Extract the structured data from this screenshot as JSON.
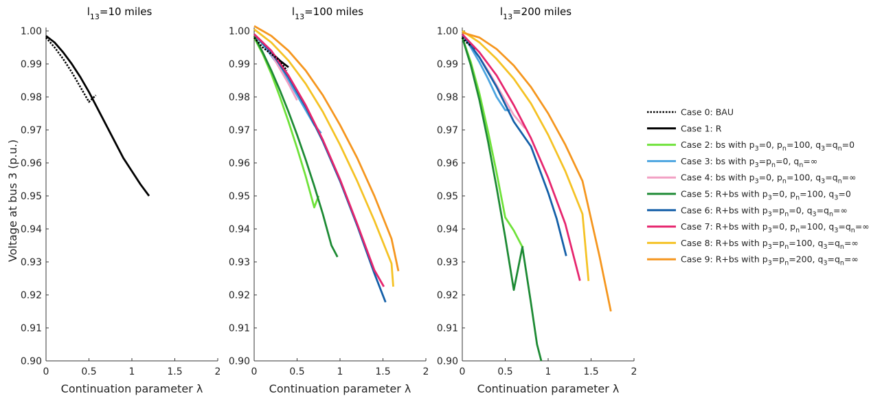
{
  "chart_data": [
    {
      "type": "line",
      "title": "l13=10 miles",
      "title_main": "l",
      "title_sub": "13",
      "title_rest": "=10 miles",
      "xlabel": "Continuation parameter λ",
      "ylabel": "Voltage at bus 3 (p.u.)",
      "xlim": [
        0,
        2
      ],
      "ylim": [
        0.9,
        1.0
      ],
      "xticks": [
        0,
        0.5,
        1,
        1.5,
        2
      ],
      "xtick_labels": [
        "0",
        "0.5",
        "1",
        "1.5",
        "2"
      ],
      "yticks": [
        0.9,
        0.91,
        0.92,
        0.93,
        0.94,
        0.95,
        0.96,
        0.97,
        0.98,
        0.99,
        1.0
      ],
      "ytick_labels": [
        "0.90",
        "0.91",
        "0.92",
        "0.93",
        "0.94",
        "0.95",
        "0.96",
        "0.97",
        "0.98",
        "0.99",
        "1.00"
      ],
      "series": [
        {
          "case": 0,
          "x": [
            0,
            0.1,
            0.2,
            0.3,
            0.4,
            0.5,
            0.58
          ],
          "y": [
            0.998,
            0.995,
            0.9915,
            0.9875,
            0.983,
            0.9785,
            0.9805
          ]
        },
        {
          "case": 1,
          "x": [
            0,
            0.1,
            0.2,
            0.3,
            0.4,
            0.5,
            0.6,
            0.7,
            0.8,
            0.9,
            1.0,
            1.1,
            1.2
          ],
          "y": [
            0.9985,
            0.9965,
            0.9935,
            0.99,
            0.986,
            0.9815,
            0.9765,
            0.9715,
            0.9665,
            0.9615,
            0.9575,
            0.9535,
            0.95
          ]
        }
      ]
    },
    {
      "type": "line",
      "title": "l13=100 miles",
      "title_main": "l",
      "title_sub": "13",
      "title_rest": "=100 miles",
      "xlabel": "Continuation parameter λ",
      "ylabel": "",
      "xlim": [
        0,
        2
      ],
      "ylim": [
        0.9,
        1.0
      ],
      "xticks": [
        0,
        0.5,
        1,
        1.5,
        2
      ],
      "xtick_labels": [
        "0",
        "0.5",
        "1",
        "1.5",
        "2"
      ],
      "yticks": [
        0.9,
        0.91,
        0.92,
        0.93,
        0.94,
        0.95,
        0.96,
        0.97,
        0.98,
        0.99,
        1.0
      ],
      "ytick_labels": [
        "0.90",
        "0.91",
        "0.92",
        "0.93",
        "0.94",
        "0.95",
        "0.96",
        "0.97",
        "0.98",
        "0.99",
        "1.00"
      ],
      "series": [
        {
          "case": 0,
          "x": [
            0,
            0.1,
            0.2,
            0.3,
            0.38
          ],
          "y": [
            0.998,
            0.995,
            0.993,
            0.991,
            0.988
          ]
        },
        {
          "case": 1,
          "x": [
            0,
            0.1,
            0.2,
            0.3,
            0.4
          ],
          "y": [
            0.999,
            0.9965,
            0.9935,
            0.991,
            0.989
          ]
        },
        {
          "case": 2,
          "x": [
            0,
            0.1,
            0.2,
            0.3,
            0.4,
            0.5,
            0.6,
            0.7,
            0.75
          ],
          "y": [
            0.998,
            0.993,
            0.987,
            0.98,
            0.9725,
            0.9645,
            0.956,
            0.9465,
            0.95
          ]
        },
        {
          "case": 3,
          "x": [
            0,
            0.1,
            0.2,
            0.3,
            0.4,
            0.5,
            0.6,
            0.7,
            0.78
          ],
          "y": [
            0.999,
            0.996,
            0.9925,
            0.989,
            0.985,
            0.9805,
            0.976,
            0.9715,
            0.969
          ]
        },
        {
          "case": 4,
          "x": [
            0,
            0.1,
            0.2,
            0.3,
            0.4,
            0.5
          ],
          "y": [
            0.999,
            0.9965,
            0.993,
            0.9885,
            0.984,
            0.979
          ]
        },
        {
          "case": 5,
          "x": [
            0,
            0.1,
            0.2,
            0.3,
            0.4,
            0.5,
            0.6,
            0.7,
            0.8,
            0.9,
            0.97
          ],
          "y": [
            0.9985,
            0.9935,
            0.988,
            0.982,
            0.9755,
            0.9685,
            0.961,
            0.953,
            0.9445,
            0.935,
            0.9315
          ]
        },
        {
          "case": 6,
          "x": [
            0,
            0.2,
            0.4,
            0.6,
            0.8,
            1.0,
            1.2,
            1.4,
            1.53
          ],
          "y": [
            0.999,
            0.9935,
            0.986,
            0.977,
            0.9665,
            0.9545,
            0.941,
            0.9265,
            0.9178
          ]
        },
        {
          "case": 7,
          "x": [
            0,
            0.2,
            0.4,
            0.6,
            0.8,
            1.0,
            1.2,
            1.4,
            1.51
          ],
          "y": [
            0.999,
            0.994,
            0.9865,
            0.9775,
            0.967,
            0.955,
            0.9415,
            0.9275,
            0.9225
          ]
        },
        {
          "case": 8,
          "x": [
            0,
            0.2,
            0.4,
            0.6,
            0.8,
            1.0,
            1.2,
            1.4,
            1.6,
            1.62
          ],
          "y": [
            1.0005,
            0.9965,
            0.991,
            0.984,
            0.9755,
            0.9655,
            0.9545,
            0.9425,
            0.9295,
            0.9225
          ]
        },
        {
          "case": 9,
          "x": [
            0,
            0.2,
            0.4,
            0.6,
            0.8,
            1.0,
            1.2,
            1.4,
            1.6,
            1.68
          ],
          "y": [
            1.0015,
            0.9985,
            0.994,
            0.988,
            0.9805,
            0.9715,
            0.9615,
            0.95,
            0.937,
            0.9272
          ]
        }
      ]
    },
    {
      "type": "line",
      "title": "l13=200 miles",
      "title_main": "l",
      "title_sub": "13",
      "title_rest": "=200 miles",
      "xlabel": "Continuation parameter λ",
      "ylabel": "",
      "xlim": [
        0,
        2
      ],
      "ylim": [
        0.9,
        1.0
      ],
      "xticks": [
        0,
        0.5,
        1,
        1.5,
        2
      ],
      "xtick_labels": [
        "0",
        "0.5",
        "1",
        "1.5",
        "2"
      ],
      "yticks": [
        0.9,
        0.91,
        0.92,
        0.93,
        0.94,
        0.95,
        0.96,
        0.97,
        0.98,
        0.99,
        1.0
      ],
      "ytick_labels": [
        "0.90",
        "0.91",
        "0.92",
        "0.93",
        "0.94",
        "0.95",
        "0.96",
        "0.97",
        "0.98",
        "0.99",
        "1.00"
      ],
      "series": [
        {
          "case": 0,
          "x": [
            0,
            0.05,
            0.1
          ],
          "y": [
            0.998,
            0.9965,
            0.9955
          ]
        },
        {
          "case": 1,
          "x": [
            0,
            0.05,
            0.1,
            0.15
          ],
          "y": [
            0.9985,
            0.9975,
            0.996,
            0.9945
          ]
        },
        {
          "case": 2,
          "x": [
            0,
            0.1,
            0.2,
            0.3,
            0.4,
            0.5,
            0.6,
            0.7,
            0.71
          ],
          "y": [
            0.998,
            0.9905,
            0.981,
            0.9695,
            0.957,
            0.9435,
            0.9395,
            0.9345,
            0.9348
          ]
        },
        {
          "case": 3,
          "x": [
            0,
            0.1,
            0.2,
            0.3,
            0.4,
            0.5,
            0.57
          ],
          "y": [
            0.999,
            0.995,
            0.9905,
            0.9855,
            0.98,
            0.976,
            0.976
          ]
        },
        {
          "case": 4,
          "x": [
            0,
            0.1,
            0.2,
            0.3,
            0.4,
            0.5,
            0.6,
            0.73
          ],
          "y": [
            0.999,
            0.9955,
            0.992,
            0.988,
            0.9835,
            0.979,
            0.9745,
            0.9705
          ]
        },
        {
          "case": 5,
          "x": [
            0,
            0.1,
            0.2,
            0.3,
            0.4,
            0.5,
            0.6,
            0.7,
            0.8,
            0.87,
            0.92
          ],
          "y": [
            0.998,
            0.9895,
            0.979,
            0.9665,
            0.9525,
            0.9375,
            0.9215,
            0.9345,
            0.9175,
            0.905,
            0.9
          ]
        },
        {
          "case": 6,
          "x": [
            0,
            0.2,
            0.4,
            0.6,
            0.8,
            1.0,
            1.1,
            1.21
          ],
          "y": [
            0.999,
            0.992,
            0.983,
            0.9725,
            0.965,
            0.951,
            0.943,
            0.9318
          ]
        },
        {
          "case": 7,
          "x": [
            0,
            0.2,
            0.4,
            0.6,
            0.8,
            1.0,
            1.2,
            1.37
          ],
          "y": [
            0.999,
            0.9935,
            0.9865,
            0.9775,
            0.9675,
            0.9555,
            0.9415,
            0.9243
          ]
        },
        {
          "case": 8,
          "x": [
            0,
            0.2,
            0.4,
            0.6,
            0.8,
            1.0,
            1.2,
            1.4,
            1.47
          ],
          "y": [
            1.0,
            0.9965,
            0.9915,
            0.9855,
            0.978,
            0.9685,
            0.9575,
            0.9445,
            0.9242
          ]
        },
        {
          "case": 9,
          "x": [
            0,
            0.2,
            0.4,
            0.6,
            0.8,
            1.0,
            1.2,
            1.4,
            1.6,
            1.73
          ],
          "y": [
            0.9995,
            0.998,
            0.9945,
            0.9895,
            0.983,
            0.975,
            0.9655,
            0.9545,
            0.9315,
            0.915
          ]
        }
      ]
    }
  ],
  "legend": {
    "placement": "right",
    "items": [
      {
        "case": 0,
        "color": "#000000",
        "dashed": true,
        "parts": [
          {
            "t": "Case 0: BAU"
          }
        ]
      },
      {
        "case": 1,
        "color": "#000000",
        "dashed": false,
        "parts": [
          {
            "t": "Case 1: R"
          }
        ]
      },
      {
        "case": 2,
        "color": "#6fe23a",
        "dashed": false,
        "parts": [
          {
            "t": "Case 2: bs with p"
          },
          {
            "t": "3",
            "sub": true
          },
          {
            "t": "=0, p"
          },
          {
            "t": "n",
            "sub": true
          },
          {
            "t": "=100, q"
          },
          {
            "t": "3",
            "sub": true
          },
          {
            "t": "=q"
          },
          {
            "t": "n",
            "sub": true
          },
          {
            "t": "=0"
          }
        ]
      },
      {
        "case": 3,
        "color": "#4ba4e0",
        "dashed": false,
        "parts": [
          {
            "t": "Case 3: bs with p"
          },
          {
            "t": "3",
            "sub": true
          },
          {
            "t": "=p"
          },
          {
            "t": "n",
            "sub": true
          },
          {
            "t": "=0, q"
          },
          {
            "t": "n",
            "sub": true
          },
          {
            "t": "=∞"
          }
        ]
      },
      {
        "case": 4,
        "color": "#f2a0c4",
        "dashed": false,
        "parts": [
          {
            "t": "Case 4: bs with p"
          },
          {
            "t": "3",
            "sub": true
          },
          {
            "t": "=0, p"
          },
          {
            "t": "n",
            "sub": true
          },
          {
            "t": "=100, q"
          },
          {
            "t": "3",
            "sub": true
          },
          {
            "t": "=q"
          },
          {
            "t": "n",
            "sub": true
          },
          {
            "t": "=∞"
          }
        ]
      },
      {
        "case": 5,
        "color": "#1d8a34",
        "dashed": false,
        "parts": [
          {
            "t": "Case 5: R+bs with p"
          },
          {
            "t": "3",
            "sub": true
          },
          {
            "t": "=0, p"
          },
          {
            "t": "n",
            "sub": true
          },
          {
            "t": "=100, q"
          },
          {
            "t": "3",
            "sub": true
          },
          {
            "t": "=0"
          }
        ]
      },
      {
        "case": 6,
        "color": "#135fa8",
        "dashed": false,
        "parts": [
          {
            "t": "Case 6: R+bs with p"
          },
          {
            "t": "3",
            "sub": true
          },
          {
            "t": "=p"
          },
          {
            "t": "n",
            "sub": true
          },
          {
            "t": "=0, q"
          },
          {
            "t": "3",
            "sub": true
          },
          {
            "t": "=q"
          },
          {
            "t": "n",
            "sub": true
          },
          {
            "t": "=∞"
          }
        ]
      },
      {
        "case": 7,
        "color": "#e6256e",
        "dashed": false,
        "parts": [
          {
            "t": "Case 7: R+bs with p"
          },
          {
            "t": "3",
            "sub": true
          },
          {
            "t": "=0, p"
          },
          {
            "t": "n",
            "sub": true
          },
          {
            "t": "=100, q"
          },
          {
            "t": "3",
            "sub": true
          },
          {
            "t": "=q"
          },
          {
            "t": "n",
            "sub": true
          },
          {
            "t": "=∞"
          }
        ]
      },
      {
        "case": 8,
        "color": "#f5c224",
        "dashed": false,
        "parts": [
          {
            "t": "Case 8: R+bs with p"
          },
          {
            "t": "3",
            "sub": true
          },
          {
            "t": "=p"
          },
          {
            "t": "n",
            "sub": true
          },
          {
            "t": "=100, q"
          },
          {
            "t": "3",
            "sub": true
          },
          {
            "t": "=q"
          },
          {
            "t": "n",
            "sub": true
          },
          {
            "t": "=∞"
          }
        ]
      },
      {
        "case": 9,
        "color": "#f5961e",
        "dashed": false,
        "parts": [
          {
            "t": "Case 9: R+bs with p"
          },
          {
            "t": "3",
            "sub": true
          },
          {
            "t": "=p"
          },
          {
            "t": "n",
            "sub": true
          },
          {
            "t": "=200, q"
          },
          {
            "t": "3",
            "sub": true
          },
          {
            "t": "=q"
          },
          {
            "t": "n",
            "sub": true
          },
          {
            "t": "=∞"
          }
        ]
      }
    ]
  }
}
